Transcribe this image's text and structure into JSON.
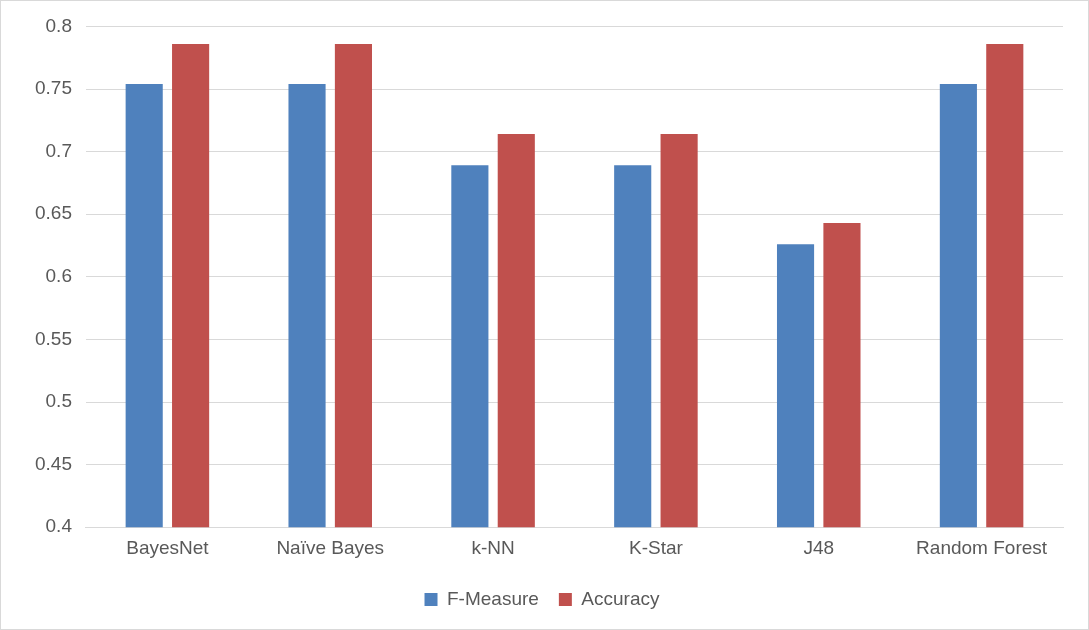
{
  "chart_data": {
    "type": "bar",
    "categories": [
      "BayesNet",
      "Naïve Bayes",
      "k-NN",
      "K-Star",
      "J48",
      "Random Forest"
    ],
    "series": [
      {
        "name": "F-Measure",
        "color": "#4f81bd",
        "values": [
          0.754,
          0.754,
          0.689,
          0.689,
          0.626,
          0.754
        ]
      },
      {
        "name": "Accuracy",
        "color": "#c0504d",
        "values": [
          0.786,
          0.786,
          0.714,
          0.714,
          0.643,
          0.786
        ]
      }
    ],
    "ylim": [
      0.4,
      0.8
    ],
    "yticks": [
      0.4,
      0.45,
      0.5,
      0.55,
      0.6,
      0.65,
      0.7,
      0.75,
      0.8
    ],
    "grid": "y",
    "legend": "bottom"
  }
}
